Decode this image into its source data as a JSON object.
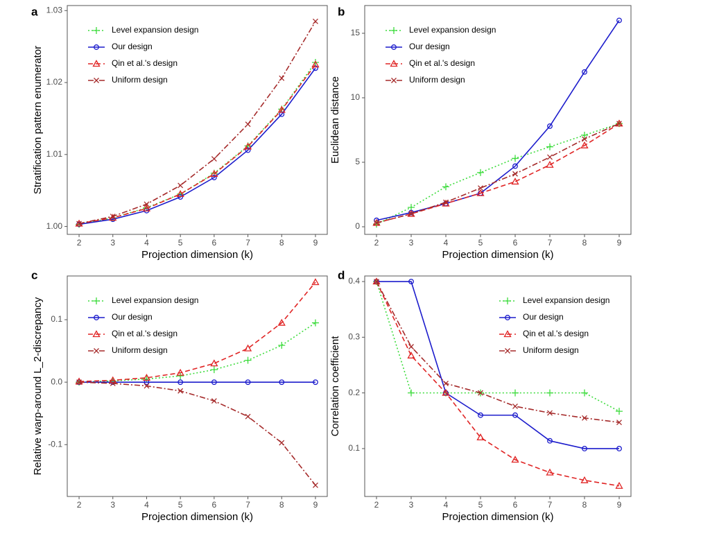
{
  "chart_data": [
    {
      "type": "line",
      "label": "a",
      "xlabel": "Projection dimension (k)",
      "ylabel": "Stratification pattern enumerator",
      "x": [
        2,
        3,
        4,
        5,
        6,
        7,
        8,
        9
      ],
      "xlim": [
        1.65,
        9.35
      ],
      "xticks": [
        2,
        3,
        4,
        5,
        6,
        7,
        8,
        9
      ],
      "ylim": [
        0.9989,
        1.0307
      ],
      "yticks": [
        {
          "value": 1,
          "label": "1.00"
        },
        1.01,
        1.02,
        1.03
      ],
      "legend": "top-left",
      "series": [
        {
          "name": "Level expansion design",
          "color": "#3ddc3d",
          "dash": "dotted",
          "marker": "plus",
          "values": [
            1.0003,
            1.0012,
            1.0026,
            1.0045,
            1.0074,
            1.0112,
            1.0163,
            1.0228
          ]
        },
        {
          "name": "Our design",
          "color": "#1c1ccc",
          "dash": "solid",
          "marker": "circle",
          "values": [
            1.0003,
            1.001,
            1.0022,
            1.0041,
            1.0068,
            1.0106,
            1.0156,
            1.022
          ]
        },
        {
          "name": "Qin et al.'s design",
          "color": "#e02424",
          "dash": "dashed",
          "marker": "triangle",
          "values": [
            1.0004,
            1.0012,
            1.0025,
            1.0045,
            1.0073,
            1.0111,
            1.0162,
            1.0225
          ]
        },
        {
          "name": "Uniform design",
          "color": "#a52a2a",
          "dash": "dotdash",
          "marker": "cross",
          "values": [
            1.0004,
            1.0014,
            1.0031,
            1.0057,
            1.0094,
            1.0142,
            1.0206,
            1.0285
          ]
        }
      ]
    },
    {
      "type": "line",
      "label": "b",
      "xlabel": "Projection dimension (k)",
      "ylabel": "Euclidean distance",
      "x": [
        2,
        3,
        4,
        5,
        6,
        7,
        8,
        9
      ],
      "xlim": [
        1.66,
        9.34
      ],
      "xticks": [
        2,
        3,
        4,
        5,
        6,
        7,
        8,
        9
      ],
      "ylim": [
        -0.59,
        17.15
      ],
      "yticks": [
        0,
        5,
        10,
        15
      ],
      "legend": "top-left",
      "series": [
        {
          "name": "Level expansion design",
          "color": "#3ddc3d",
          "dash": "dotted",
          "marker": "plus",
          "values": [
            0.2,
            1.5,
            3.1,
            4.2,
            5.3,
            6.2,
            7.1,
            8.0
          ]
        },
        {
          "name": "Our design",
          "color": "#1c1ccc",
          "dash": "solid",
          "marker": "circle",
          "values": [
            0.5,
            1.1,
            1.8,
            2.6,
            4.7,
            7.8,
            12.0,
            16.0
          ]
        },
        {
          "name": "Qin et al.'s design",
          "color": "#e02424",
          "dash": "dashed",
          "marker": "triangle",
          "values": [
            0.3,
            1.0,
            1.8,
            2.6,
            3.5,
            4.8,
            6.3,
            8.0
          ]
        },
        {
          "name": "Uniform design",
          "color": "#a52a2a",
          "dash": "dotdash",
          "marker": "cross",
          "values": [
            0.3,
            1.0,
            1.9,
            3.0,
            4.1,
            5.4,
            6.8,
            8.0
          ]
        }
      ]
    },
    {
      "type": "line",
      "label": "c",
      "xlabel": "Projection dimension (k)",
      "ylabel": "Relative warp-around L_2-discrepancy",
      "x": [
        2,
        3,
        4,
        5,
        6,
        7,
        8,
        9
      ],
      "xlim": [
        1.65,
        9.35
      ],
      "xticks": [
        2,
        3,
        4,
        5,
        6,
        7,
        8,
        9
      ],
      "ylim": [
        -0.183,
        0.17
      ],
      "yticks": [
        -0.1,
        {
          "value": 0,
          "label": "0.0"
        },
        0.1
      ],
      "legend": "top-left",
      "series": [
        {
          "name": "Level expansion design",
          "color": "#3ddc3d",
          "dash": "dotted",
          "marker": "plus",
          "values": [
            0,
            0.002,
            0.005,
            0.01,
            0.02,
            0.035,
            0.059,
            0.095
          ]
        },
        {
          "name": "Our design",
          "color": "#1c1ccc",
          "dash": "solid",
          "marker": "circle",
          "values": [
            0,
            0,
            0,
            0,
            0,
            0,
            0,
            0
          ]
        },
        {
          "name": "Qin et al.'s design",
          "color": "#e02424",
          "dash": "dashed",
          "marker": "triangle",
          "values": [
            0.001,
            0.003,
            0.007,
            0.015,
            0.03,
            0.054,
            0.095,
            0.16
          ]
        },
        {
          "name": "Uniform design",
          "color": "#a52a2a",
          "dash": "dotdash",
          "marker": "cross",
          "values": [
            0,
            -0.002,
            -0.006,
            -0.014,
            -0.03,
            -0.055,
            -0.097,
            -0.165
          ]
        }
      ]
    },
    {
      "type": "line",
      "label": "d",
      "xlabel": "Projection dimension (k)",
      "ylabel": "Correlation coefficient",
      "x": [
        2,
        3,
        4,
        5,
        6,
        7,
        8,
        9
      ],
      "xlim": [
        1.66,
        9.34
      ],
      "xticks": [
        2,
        3,
        4,
        5,
        6,
        7,
        8,
        9
      ],
      "ylim": [
        0.014,
        0.41
      ],
      "yticks": [
        0.1,
        0.2,
        0.3,
        0.4
      ],
      "legend": "top-right",
      "series": [
        {
          "name": "Level expansion design",
          "color": "#3ddc3d",
          "dash": "dotted",
          "marker": "plus",
          "values": [
            0.4,
            0.2,
            0.2,
            0.2,
            0.2,
            0.2,
            0.2,
            0.167
          ]
        },
        {
          "name": "Our design",
          "color": "#1c1ccc",
          "dash": "solid",
          "marker": "circle",
          "values": [
            0.4,
            0.4,
            0.2,
            0.16,
            0.16,
            0.114,
            0.1,
            0.1
          ]
        },
        {
          "name": "Qin et al.'s design",
          "color": "#e02424",
          "dash": "dashed",
          "marker": "triangle",
          "values": [
            0.4,
            0.267,
            0.2,
            0.12,
            0.08,
            0.057,
            0.043,
            0.033
          ]
        },
        {
          "name": "Uniform design",
          "color": "#a52a2a",
          "dash": "dotdash",
          "marker": "cross",
          "values": [
            0.4,
            0.283,
            0.217,
            0.2,
            0.176,
            0.164,
            0.155,
            0.147
          ]
        }
      ]
    }
  ]
}
